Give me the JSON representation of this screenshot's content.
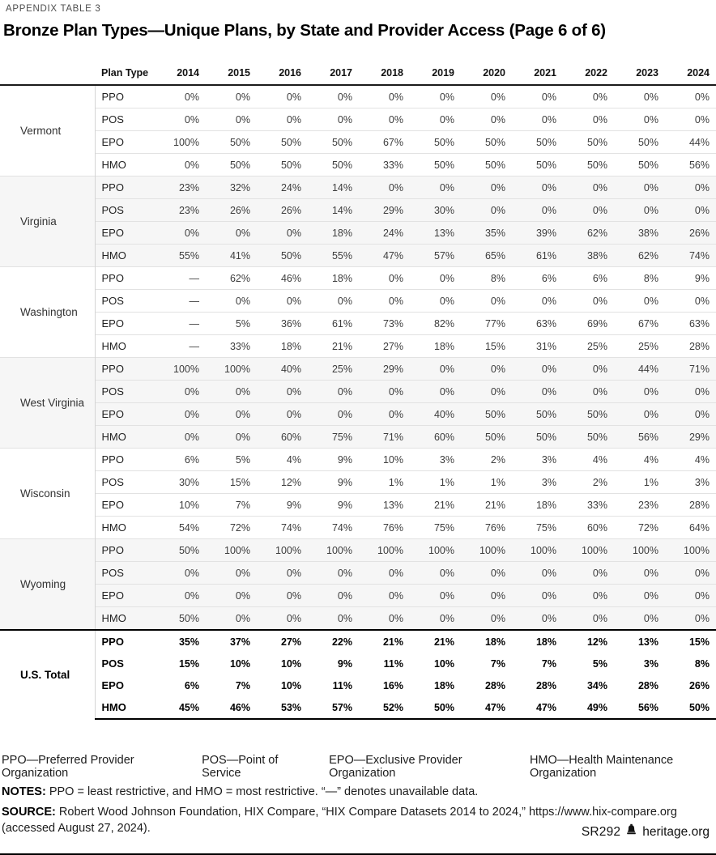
{
  "page": {
    "kicker": "APPENDIX TABLE 3",
    "title": "Bronze Plan Types—Unique Plans, by State and Provider Access (Page 6 of 6)"
  },
  "table": {
    "plan_type_header": "Plan Type",
    "years": [
      "2014",
      "2015",
      "2016",
      "2017",
      "2018",
      "2019",
      "2020",
      "2021",
      "2022",
      "2023",
      "2024"
    ],
    "groups": [
      {
        "state": "Vermont",
        "rows": [
          {
            "plan": "PPO",
            "values": [
              "0%",
              "0%",
              "0%",
              "0%",
              "0%",
              "0%",
              "0%",
              "0%",
              "0%",
              "0%",
              "0%"
            ]
          },
          {
            "plan": "POS",
            "values": [
              "0%",
              "0%",
              "0%",
              "0%",
              "0%",
              "0%",
              "0%",
              "0%",
              "0%",
              "0%",
              "0%"
            ]
          },
          {
            "plan": "EPO",
            "values": [
              "100%",
              "50%",
              "50%",
              "50%",
              "67%",
              "50%",
              "50%",
              "50%",
              "50%",
              "50%",
              "44%"
            ]
          },
          {
            "plan": "HMO",
            "values": [
              "0%",
              "50%",
              "50%",
              "50%",
              "33%",
              "50%",
              "50%",
              "50%",
              "50%",
              "50%",
              "56%"
            ]
          }
        ]
      },
      {
        "state": "Virginia",
        "rows": [
          {
            "plan": "PPO",
            "values": [
              "23%",
              "32%",
              "24%",
              "14%",
              "0%",
              "0%",
              "0%",
              "0%",
              "0%",
              "0%",
              "0%"
            ]
          },
          {
            "plan": "POS",
            "values": [
              "23%",
              "26%",
              "26%",
              "14%",
              "29%",
              "30%",
              "0%",
              "0%",
              "0%",
              "0%",
              "0%"
            ]
          },
          {
            "plan": "EPO",
            "values": [
              "0%",
              "0%",
              "0%",
              "18%",
              "24%",
              "13%",
              "35%",
              "39%",
              "62%",
              "38%",
              "26%"
            ]
          },
          {
            "plan": "HMO",
            "values": [
              "55%",
              "41%",
              "50%",
              "55%",
              "47%",
              "57%",
              "65%",
              "61%",
              "38%",
              "62%",
              "74%"
            ]
          }
        ]
      },
      {
        "state": "Washington",
        "rows": [
          {
            "plan": "PPO",
            "values": [
              "—",
              "62%",
              "46%",
              "18%",
              "0%",
              "0%",
              "8%",
              "6%",
              "6%",
              "8%",
              "9%"
            ]
          },
          {
            "plan": "POS",
            "values": [
              "—",
              "0%",
              "0%",
              "0%",
              "0%",
              "0%",
              "0%",
              "0%",
              "0%",
              "0%",
              "0%"
            ]
          },
          {
            "plan": "EPO",
            "values": [
              "—",
              "5%",
              "36%",
              "61%",
              "73%",
              "82%",
              "77%",
              "63%",
              "69%",
              "67%",
              "63%"
            ]
          },
          {
            "plan": "HMO",
            "values": [
              "—",
              "33%",
              "18%",
              "21%",
              "27%",
              "18%",
              "15%",
              "31%",
              "25%",
              "25%",
              "28%"
            ]
          }
        ]
      },
      {
        "state": "West Virginia",
        "rows": [
          {
            "plan": "PPO",
            "values": [
              "100%",
              "100%",
              "40%",
              "25%",
              "29%",
              "0%",
              "0%",
              "0%",
              "0%",
              "44%",
              "71%"
            ]
          },
          {
            "plan": "POS",
            "values": [
              "0%",
              "0%",
              "0%",
              "0%",
              "0%",
              "0%",
              "0%",
              "0%",
              "0%",
              "0%",
              "0%"
            ]
          },
          {
            "plan": "EPO",
            "values": [
              "0%",
              "0%",
              "0%",
              "0%",
              "0%",
              "40%",
              "50%",
              "50%",
              "50%",
              "0%",
              "0%"
            ]
          },
          {
            "plan": "HMO",
            "values": [
              "0%",
              "0%",
              "60%",
              "75%",
              "71%",
              "60%",
              "50%",
              "50%",
              "50%",
              "56%",
              "29%"
            ]
          }
        ]
      },
      {
        "state": "Wisconsin",
        "rows": [
          {
            "plan": "PPO",
            "values": [
              "6%",
              "5%",
              "4%",
              "9%",
              "10%",
              "3%",
              "2%",
              "3%",
              "4%",
              "4%",
              "4%"
            ]
          },
          {
            "plan": "POS",
            "values": [
              "30%",
              "15%",
              "12%",
              "9%",
              "1%",
              "1%",
              "1%",
              "3%",
              "2%",
              "1%",
              "3%"
            ]
          },
          {
            "plan": "EPO",
            "values": [
              "10%",
              "7%",
              "9%",
              "9%",
              "13%",
              "21%",
              "21%",
              "18%",
              "33%",
              "23%",
              "28%"
            ]
          },
          {
            "plan": "HMO",
            "values": [
              "54%",
              "72%",
              "74%",
              "74%",
              "76%",
              "75%",
              "76%",
              "75%",
              "60%",
              "72%",
              "64%"
            ]
          }
        ]
      },
      {
        "state": "Wyoming",
        "rows": [
          {
            "plan": "PPO",
            "values": [
              "50%",
              "100%",
              "100%",
              "100%",
              "100%",
              "100%",
              "100%",
              "100%",
              "100%",
              "100%",
              "100%"
            ]
          },
          {
            "plan": "POS",
            "values": [
              "0%",
              "0%",
              "0%",
              "0%",
              "0%",
              "0%",
              "0%",
              "0%",
              "0%",
              "0%",
              "0%"
            ]
          },
          {
            "plan": "EPO",
            "values": [
              "0%",
              "0%",
              "0%",
              "0%",
              "0%",
              "0%",
              "0%",
              "0%",
              "0%",
              "0%",
              "0%"
            ]
          },
          {
            "plan": "HMO",
            "values": [
              "50%",
              "0%",
              "0%",
              "0%",
              "0%",
              "0%",
              "0%",
              "0%",
              "0%",
              "0%",
              "0%"
            ]
          }
        ]
      }
    ],
    "total": {
      "state": "U.S. Total",
      "rows": [
        {
          "plan": "PPO",
          "values": [
            "35%",
            "37%",
            "27%",
            "22%",
            "21%",
            "21%",
            "18%",
            "18%",
            "12%",
            "13%",
            "15%"
          ]
        },
        {
          "plan": "POS",
          "values": [
            "15%",
            "10%",
            "10%",
            "9%",
            "11%",
            "10%",
            "7%",
            "7%",
            "5%",
            "3%",
            "8%"
          ]
        },
        {
          "plan": "EPO",
          "values": [
            "6%",
            "7%",
            "10%",
            "11%",
            "16%",
            "18%",
            "28%",
            "28%",
            "34%",
            "28%",
            "26%"
          ]
        },
        {
          "plan": "HMO",
          "values": [
            "45%",
            "46%",
            "53%",
            "57%",
            "52%",
            "50%",
            "47%",
            "47%",
            "49%",
            "56%",
            "50%"
          ]
        }
      ]
    }
  },
  "footer": {
    "legend": [
      "PPO—Preferred Provider Organization",
      "POS—Point of Service",
      "EPO—Exclusive Provider Organization",
      "HMO—Health Maintenance Organization"
    ],
    "notes_label": "NOTES:",
    "notes_text": "PPO = least restrictive, and HMO = most restrictive. “—” denotes unavailable data.",
    "source_label": "SOURCE:",
    "source_text": "Robert Wood Johnson Foundation, HIX Compare, “HIX Compare Datasets 2014 to 2024,” https://www.hix-compare.org (accessed August 27, 2024).",
    "report_id": "SR292",
    "brand": "heritage.org"
  }
}
